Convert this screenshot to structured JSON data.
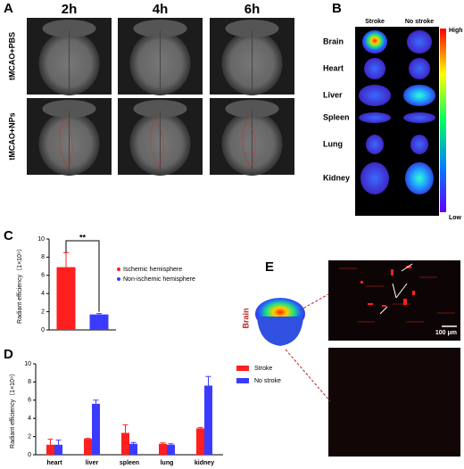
{
  "panels": {
    "A": {
      "label": "A",
      "columns": [
        "2h",
        "4h",
        "6h"
      ],
      "rows": [
        "tMCAO+PBS",
        "tMCAO+NPs"
      ]
    },
    "B": {
      "label": "B",
      "columns": [
        "Stroke",
        "No stroke"
      ],
      "organs": [
        "Brain",
        "Heart",
        "Liver",
        "Spleen",
        "Lung",
        "Kidney"
      ],
      "colorbar": {
        "high": "High",
        "low": "Low"
      }
    },
    "C": {
      "label": "C"
    },
    "D": {
      "label": "D"
    },
    "E": {
      "label": "E",
      "inset": "Brain",
      "scale_bar": "100 μm"
    }
  },
  "chart_data": [
    {
      "type": "bar",
      "y_label": "Radiant efficiency（1×10⁹）",
      "annotation": "**",
      "categories": [
        null
      ],
      "series": [
        {
          "name": "Ischemic hemisphere",
          "color": "#ff1f1f",
          "values": [
            6.9
          ],
          "errors": [
            1.6
          ]
        },
        {
          "name": "Non-ischemic hemisphere",
          "color": "#3b3bff",
          "values": [
            1.7
          ],
          "errors": [
            0.1
          ]
        }
      ],
      "ylim": [
        0,
        10
      ],
      "yticks": [
        0,
        2,
        4,
        6,
        8,
        10
      ]
    },
    {
      "type": "bar",
      "y_label": "Radiant efficiency（1×10⁹）",
      "categories": [
        "heart",
        "liver",
        "spleen",
        "lung",
        "kidney"
      ],
      "series": [
        {
          "name": "Stroke",
          "color": "#ff1f1f",
          "values": [
            1.1,
            1.75,
            2.4,
            1.2,
            2.9
          ],
          "errors": [
            0.6,
            0.05,
            0.9,
            0.1,
            0.1
          ]
        },
        {
          "name": "No stroke",
          "color": "#3b3bff",
          "values": [
            1.1,
            5.6,
            1.2,
            1.1,
            7.6
          ],
          "errors": [
            0.5,
            0.4,
            0.15,
            0.1,
            1.0
          ]
        }
      ],
      "ylim": [
        0,
        10
      ],
      "yticks": [
        0,
        2,
        4,
        6,
        8,
        10
      ]
    }
  ]
}
